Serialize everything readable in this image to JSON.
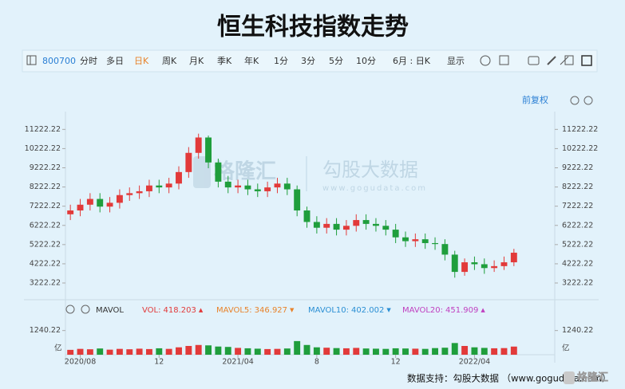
{
  "chart_data": {
    "type": "candlestick",
    "title": "恒生科技指数走势",
    "toolbar": [
      "800700",
      "分时",
      "多日",
      "日K",
      "周K",
      "月K",
      "季K",
      "年K",
      "1分",
      "3分",
      "5分",
      "10分",
      "6月 : 日K",
      "显示"
    ],
    "toolbar_code_color": "#2a7fd4",
    "toolbar_active": "日K",
    "toolbar_active_color": "#e8822a",
    "adjust_label": "前复权",
    "watermark": {
      "brand": "格隆汇",
      "name": "勾股大数据",
      "url": "www.gogudata.com"
    },
    "up_color": "#e23a3a",
    "down_color": "#1f9e3c",
    "categories": [
      null,
      "2020/08",
      null,
      null,
      null,
      null,
      null,
      null,
      null,
      "12",
      null,
      null,
      null,
      null,
      null,
      null,
      null,
      "2021/04",
      null,
      null,
      null,
      null,
      null,
      null,
      null,
      "8",
      null,
      null,
      null,
      null,
      null,
      null,
      null,
      "12",
      null,
      null,
      null,
      null,
      null,
      null,
      null,
      "2022/04",
      null,
      null,
      null,
      null
    ],
    "open": [
      6800,
      7000,
      7300,
      7600,
      7200,
      7400,
      7800,
      7900,
      8000,
      8300,
      8200,
      8400,
      9000,
      10000,
      10800,
      9500,
      8500,
      8200,
      8300,
      8100,
      8000,
      8200,
      8400,
      8100,
      7000,
      6400,
      6100,
      6300,
      6000,
      6200,
      6500,
      6300,
      6200,
      6000,
      5600,
      5400,
      5500,
      5300,
      5250,
      4700,
      3800,
      4300,
      4200,
      4000,
      4100,
      4300
    ],
    "high": [
      7300,
      7600,
      7900,
      7900,
      7700,
      8100,
      8200,
      8300,
      8600,
      8600,
      8700,
      9300,
      10300,
      11000,
      10900,
      9700,
      8800,
      8600,
      8600,
      8400,
      8500,
      8700,
      8700,
      8300,
      7200,
      6700,
      6600,
      6600,
      6500,
      6800,
      6800,
      6600,
      6500,
      6300,
      5900,
      5800,
      5800,
      5600,
      5500,
      4900,
      4500,
      4600,
      4500,
      4400,
      4600,
      5000
    ],
    "low": [
      6500,
      6700,
      7000,
      6900,
      6900,
      7100,
      7500,
      7600,
      7700,
      7900,
      7900,
      8100,
      8700,
      9700,
      9200,
      8200,
      7900,
      7900,
      7800,
      7700,
      7700,
      7900,
      7800,
      6700,
      6100,
      5800,
      5800,
      5700,
      5700,
      5900,
      6000,
      5900,
      5700,
      5300,
      5100,
      5100,
      5000,
      4950,
      4400,
      3500,
      3600,
      3900,
      3700,
      3800,
      3900,
      4100
    ],
    "close": [
      7000,
      7300,
      7600,
      7200,
      7400,
      7800,
      7900,
      8000,
      8300,
      8200,
      8400,
      9000,
      10000,
      10800,
      9500,
      8500,
      8200,
      8300,
      8100,
      8000,
      8200,
      8400,
      8100,
      7000,
      6400,
      6100,
      6300,
      6000,
      6200,
      6500,
      6300,
      6200,
      6000,
      5600,
      5400,
      5500,
      5300,
      5250,
      4700,
      3800,
      4300,
      4200,
      4000,
      4100,
      4300,
      4800
    ],
    "ylim": [
      2600,
      11900
    ],
    "yticks": [
      3222.22,
      4222.22,
      5222.22,
      6222.22,
      7222.22,
      8222.22,
      9222.22,
      10222.22,
      11222.22
    ],
    "volume": {
      "name": "MAVOL",
      "values": [
        250,
        300,
        280,
        320,
        260,
        300,
        280,
        310,
        290,
        330,
        300,
        380,
        450,
        500,
        480,
        420,
        400,
        350,
        330,
        310,
        290,
        300,
        320,
        700,
        500,
        380,
        360,
        340,
        330,
        350,
        320,
        310,
        300,
        330,
        320,
        310,
        300,
        340,
        360,
        600,
        450,
        380,
        350,
        330,
        340,
        418
      ],
      "ylim": [
        0,
        1840
      ],
      "yticks": [
        1240.22
      ],
      "unit": "亿",
      "indicators": [
        {
          "label": "VOL:",
          "value": 418.203,
          "arrow": "▲",
          "color": "#e23a3a"
        },
        {
          "label": "MAVOL5:",
          "value": 346.927,
          "arrow": "▼",
          "color": "#e8822a"
        },
        {
          "label": "MAVOL10:",
          "value": 402.002,
          "arrow": "▼",
          "color": "#2a8fd4"
        },
        {
          "label": "MAVOL20:",
          "value": 451.909,
          "arrow": "▲",
          "color": "#c040c0"
        }
      ]
    },
    "footer": "数据支持：勾股大数据 （www.gogudata.com）",
    "logo": "格隆汇"
  }
}
